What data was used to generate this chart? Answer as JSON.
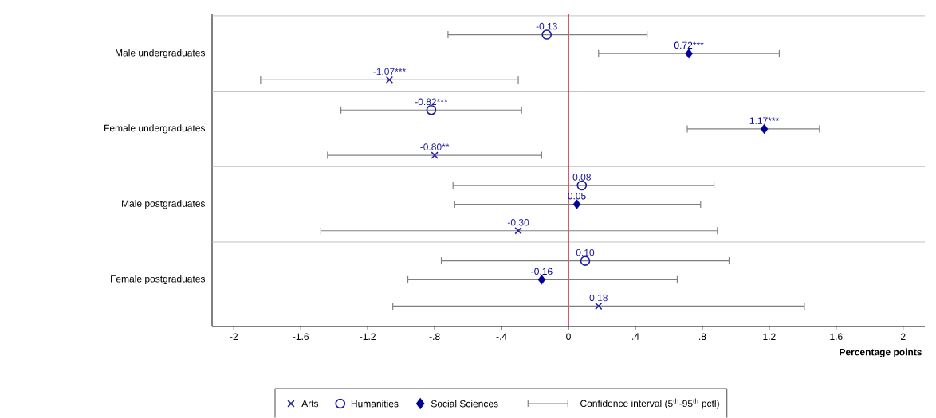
{
  "chart_data": {
    "type": "scatter",
    "orientation": "horizontal",
    "xlabel": "Percentage points",
    "categories": [
      "Male undergraduates",
      "Female undergraduates",
      "Male postgraduates",
      "Female postgraduates"
    ],
    "xlim": [
      -2.13,
      2.13
    ],
    "xticks": [
      -2,
      -1.6,
      -1.2,
      {
        "value": -0.8,
        "label": "-.8"
      },
      {
        "value": -0.4,
        "label": "-.4"
      },
      0,
      {
        "value": 0.4,
        "label": ".4"
      },
      {
        "value": 0.8,
        "label": ".8"
      },
      1.2,
      1.6,
      2
    ],
    "grid": "y",
    "legend": "bottom",
    "ref_lines": [
      {
        "axis": "x",
        "value": 0,
        "color": "#c8102e"
      }
    ],
    "annotations": [
      "Confidence interval (5$^{th}$-95$^{th}$ pctl)"
    ],
    "series": [
      {
        "name": "Arts",
        "color": "#2323a8",
        "marker": "cross",
        "values": [
          -1.07,
          -0.8,
          -0.3,
          0.18
        ],
        "errors": [
          [
            -1.84,
            -0.3
          ],
          [
            -1.44,
            -0.16
          ],
          [
            -1.48,
            0.89
          ],
          [
            -1.05,
            1.41
          ]
        ],
        "value_labels": [
          "-1.07***",
          "-0.80**",
          "-0.30",
          "0.18"
        ]
      },
      {
        "name": "Humanities",
        "color": "#1a1aa0",
        "marker": "circle",
        "values": [
          -0.13,
          -0.82,
          0.08,
          0.1
        ],
        "errors": [
          [
            -0.72,
            0.47
          ],
          [
            -1.36,
            -0.28
          ],
          [
            -0.69,
            0.87
          ],
          [
            -0.76,
            0.96
          ]
        ],
        "value_labels": [
          "-0.13",
          "-0.82***",
          "0.08",
          "0.10"
        ]
      },
      {
        "name": "Social Sciences",
        "color": "#000099",
        "marker": "diamond",
        "values": [
          0.72,
          1.17,
          0.05,
          -0.16
        ],
        "errors": [
          [
            0.18,
            1.26
          ],
          [
            0.71,
            1.5
          ],
          [
            -0.68,
            0.79
          ],
          [
            -0.96,
            0.65
          ]
        ],
        "value_labels": [
          "0.72***",
          "1.17***",
          "0.05",
          "-0.16"
        ]
      }
    ]
  }
}
